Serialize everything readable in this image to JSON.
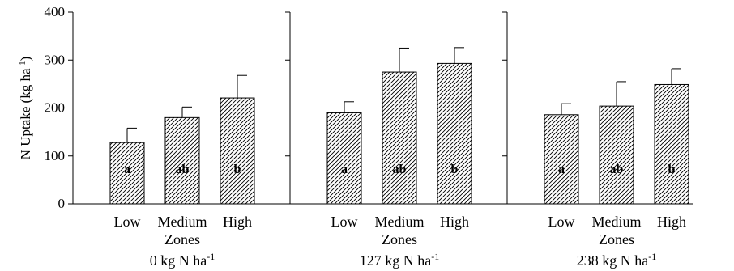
{
  "chart_data": [
    {
      "type": "bar",
      "categories": [
        "Low",
        "Medium",
        "High"
      ],
      "values": [
        128,
        180,
        221
      ],
      "errors": [
        30,
        22,
        47
      ],
      "significance": [
        "a",
        "ab",
        "b"
      ],
      "xlabel": "Zones",
      "panel_label": "0 kg N ha",
      "panel_label_sup": "-1",
      "ylabel": "N Uptake (kg ha",
      "ylabel_sup": "-1",
      "ylabel_close": ")",
      "ylim": [
        0,
        400
      ],
      "yticks": [
        0,
        100,
        200,
        300,
        400
      ]
    },
    {
      "type": "bar",
      "categories": [
        "Low",
        "Medium",
        "High"
      ],
      "values": [
        190,
        275,
        293
      ],
      "errors": [
        23,
        50,
        33
      ],
      "significance": [
        "a",
        "ab",
        "b"
      ],
      "xlabel": "Zones",
      "panel_label": "127 kg N ha",
      "panel_label_sup": "-1",
      "ylim": [
        0,
        400
      ]
    },
    {
      "type": "bar",
      "categories": [
        "Low",
        "Medium",
        "High"
      ],
      "values": [
        186,
        204,
        249
      ],
      "errors": [
        23,
        51,
        33
      ],
      "significance": [
        "a",
        "ab",
        "b"
      ],
      "xlabel": "Zones",
      "panel_label": "238 kg N ha",
      "panel_label_sup": "-1",
      "ylim": [
        0,
        400
      ]
    }
  ]
}
